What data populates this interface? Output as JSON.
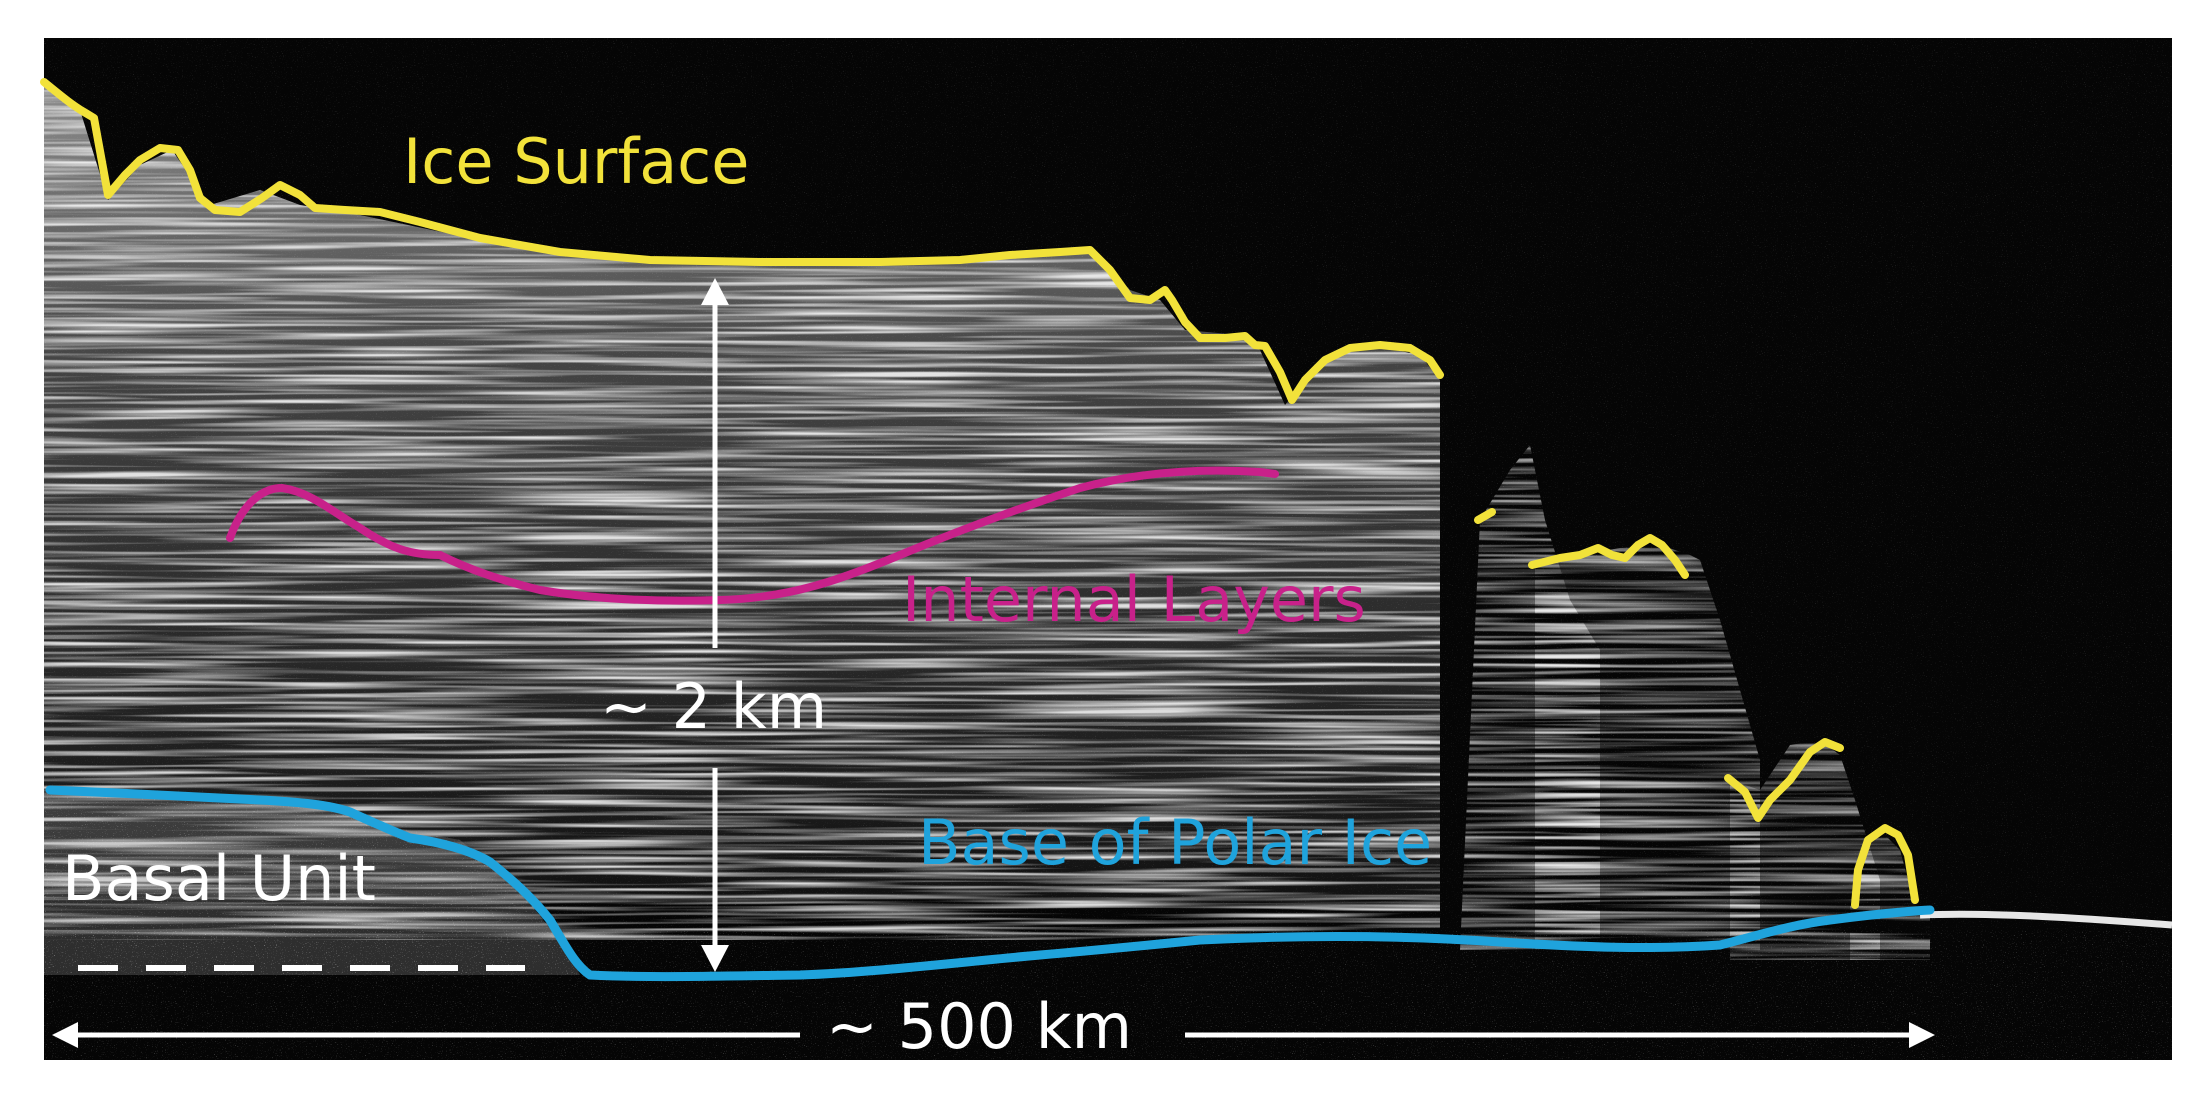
{
  "labels": {
    "ice_surface": "Ice Surface",
    "internal_layers": "Internal Layers",
    "thickness": "~ 2 km",
    "base_of_polar_ice": "Base of Polar Ice",
    "basal_unit": "Basal Unit",
    "distance": "~ 500 km"
  },
  "colors": {
    "ice_surface": "#f2e23a",
    "internal_layers": "#c8218a",
    "base_of_polar_ice": "#1fa3dc",
    "annotation": "#ffffff",
    "background": "#050505"
  }
}
